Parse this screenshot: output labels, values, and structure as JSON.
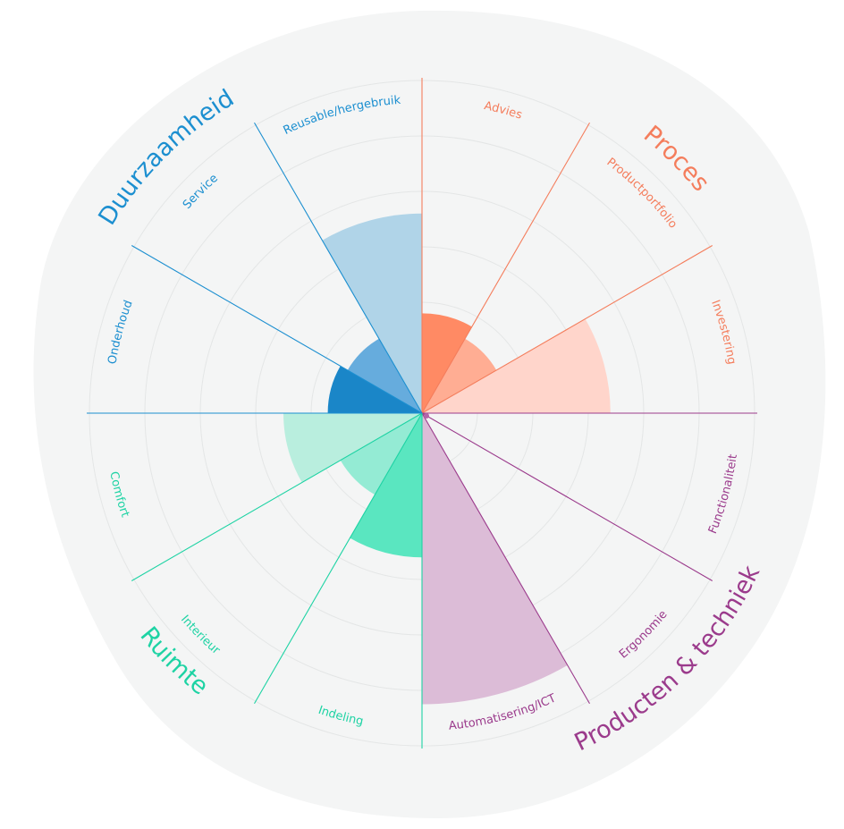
{
  "chart_data": {
    "type": "polar-area",
    "groups": [
      {
        "name": "Proces",
        "color": "#f47d5c",
        "categories": [
          {
            "label": "Advies",
            "value": 1.8,
            "fill": "#ff8a64"
          },
          {
            "label": "Productportfolio",
            "value": 1.55,
            "fill": "#ffad93"
          },
          {
            "label": "Investering",
            "value": 3.4,
            "fill": "#ffd5cb"
          }
        ]
      },
      {
        "name": "Producten & techniek",
        "color": "#9b3b8c",
        "categories": [
          {
            "label": "Functionaliteit",
            "value": 0.1,
            "fill": "#b466a8"
          },
          {
            "label": "Ergonomie",
            "value": 0.05,
            "fill": "#c98cbf"
          },
          {
            "label": "Automatisering/ICT",
            "value": 5.25,
            "fill": "#dcbcd7"
          }
        ]
      },
      {
        "name": "Ruimte",
        "color": "#1ed3a4",
        "categories": [
          {
            "label": "Indeling",
            "value": 2.6,
            "fill": "#5ae6c0"
          },
          {
            "label": "Interieur",
            "value": 1.7,
            "fill": "#94ebd4"
          },
          {
            "label": "Comfort",
            "value": 2.5,
            "fill": "#b9eede"
          }
        ]
      },
      {
        "name": "Duurzaamheid",
        "color": "#1c8fd0",
        "categories": [
          {
            "label": "Onderhoud",
            "value": 1.7,
            "fill": "#1a86c8"
          },
          {
            "label": "Service",
            "value": 1.55,
            "fill": "#66acdd"
          },
          {
            "label": "Reusable/hergebruik",
            "value": 3.6,
            "fill": "#b0d4e8"
          }
        ]
      }
    ],
    "scale": {
      "max": 6,
      "rings": 6
    },
    "grid": true
  }
}
